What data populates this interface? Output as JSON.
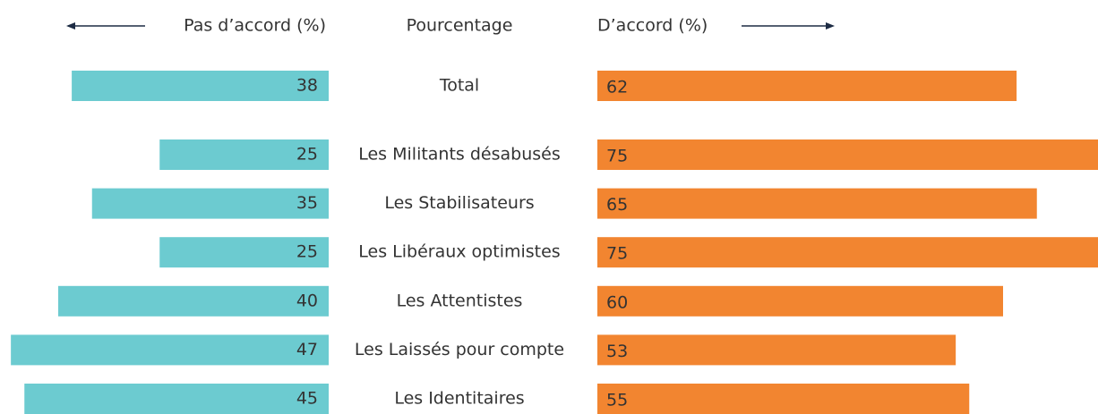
{
  "chart_data": {
    "type": "diverging_bar",
    "category_header": "Pourcentage",
    "categories": [
      "Total",
      "Les Militants désabusés",
      "Les Stabilisateurs",
      "Les Libéraux optimistes",
      "Les Attentistes",
      "Les Laissés pour compte",
      "Les Identitaires"
    ],
    "series": [
      {
        "name": "Pas d’accord (%)",
        "color": "#6ccbd0",
        "values": [
          38,
          25,
          35,
          25,
          40,
          47,
          45
        ]
      },
      {
        "name": "D’accord (%)",
        "color": "#f28530",
        "values": [
          62,
          75,
          65,
          75,
          60,
          53,
          55
        ]
      }
    ]
  }
}
